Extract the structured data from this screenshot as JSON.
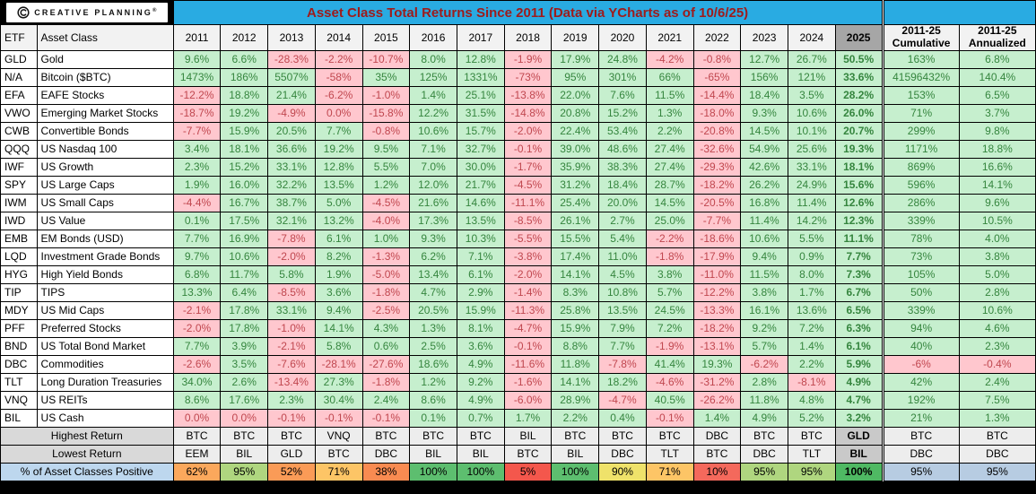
{
  "brand": {
    "logo_text": "CREATIVE PLANNING",
    "logo_reg": "®",
    "icon": "creative-planning-c-icon"
  },
  "title": "Asset Class Total Returns Since 2011 (Data via YCharts as of 10/6/25)",
  "colors": {
    "title_bar_bg": "#29ABE2",
    "title_text": "#9E1B1B",
    "positive_bg": "#C6EFCE",
    "positive_text": "#35853E",
    "negative_bg": "#FFC7CE",
    "negative_text": "#C0474F",
    "header_bg": "#F2F2F2",
    "header_2025_bg": "#A6A6A6",
    "summary_label_bg": "#D9D9D9",
    "summary_value_bg": "#EDEDED",
    "summary_2025_bg": "#C9C9C9",
    "pct_label_bg": "#BDD7EE",
    "pct_side_bg": "#B7CCE2"
  },
  "chart_data": {
    "type": "table",
    "title": "Asset Class Total Returns Since 2011 (Data via YCharts as of 10/6/25)",
    "columns": [
      "ETF",
      "Asset Class",
      "2011",
      "2012",
      "2013",
      "2014",
      "2015",
      "2016",
      "2017",
      "2018",
      "2019",
      "2020",
      "2021",
      "2022",
      "2023",
      "2024",
      "2025",
      "2011-25 Cumulative",
      "2011-25 Annualized"
    ],
    "header": {
      "etf": "ETF",
      "asset_class": "Asset Class",
      "years": [
        "2011",
        "2012",
        "2013",
        "2014",
        "2015",
        "2016",
        "2017",
        "2018",
        "2019",
        "2020",
        "2021",
        "2022",
        "2023",
        "2024",
        "2025"
      ],
      "cumulative_line1": "2011-25",
      "cumulative_line2": "Cumulative",
      "annualized_line1": "2011-25",
      "annualized_line2": "Annualized"
    },
    "rows": [
      {
        "etf": "GLD",
        "asset_class": "Gold",
        "values": [
          "9.6%",
          "6.6%",
          "-28.3%",
          "-2.2%",
          "-10.7%",
          "8.0%",
          "12.8%",
          "-1.9%",
          "17.9%",
          "24.8%",
          "-4.2%",
          "-0.8%",
          "12.7%",
          "26.7%",
          "50.5%"
        ],
        "cumulative": "163%",
        "annualized": "6.8%"
      },
      {
        "etf": "N/A",
        "asset_class": "Bitcoin ($BTC)",
        "values": [
          "1473%",
          "186%",
          "5507%",
          "-58%",
          "35%",
          "125%",
          "1331%",
          "-73%",
          "95%",
          "301%",
          "66%",
          "-65%",
          "156%",
          "121%",
          "33.6%"
        ],
        "cumulative": "41596432%",
        "annualized": "140.4%"
      },
      {
        "etf": "EFA",
        "asset_class": "EAFE Stocks",
        "values": [
          "-12.2%",
          "18.8%",
          "21.4%",
          "-6.2%",
          "-1.0%",
          "1.4%",
          "25.1%",
          "-13.8%",
          "22.0%",
          "7.6%",
          "11.5%",
          "-14.4%",
          "18.4%",
          "3.5%",
          "28.2%"
        ],
        "cumulative": "153%",
        "annualized": "6.5%"
      },
      {
        "etf": "VWO",
        "asset_class": "Emerging Market Stocks",
        "values": [
          "-18.7%",
          "19.2%",
          "-4.9%",
          "0.0%",
          "-15.8%",
          "12.2%",
          "31.5%",
          "-14.8%",
          "20.8%",
          "15.2%",
          "1.3%",
          "-18.0%",
          "9.3%",
          "10.6%",
          "26.0%"
        ],
        "cumulative": "71%",
        "annualized": "3.7%"
      },
      {
        "etf": "CWB",
        "asset_class": "Convertible Bonds",
        "values": [
          "-7.7%",
          "15.9%",
          "20.5%",
          "7.7%",
          "-0.8%",
          "10.6%",
          "15.7%",
          "-2.0%",
          "22.4%",
          "53.4%",
          "2.2%",
          "-20.8%",
          "14.5%",
          "10.1%",
          "20.7%"
        ],
        "cumulative": "299%",
        "annualized": "9.8%"
      },
      {
        "etf": "QQQ",
        "asset_class": "US Nasdaq 100",
        "values": [
          "3.4%",
          "18.1%",
          "36.6%",
          "19.2%",
          "9.5%",
          "7.1%",
          "32.7%",
          "-0.1%",
          "39.0%",
          "48.6%",
          "27.4%",
          "-32.6%",
          "54.9%",
          "25.6%",
          "19.3%"
        ],
        "cumulative": "1171%",
        "annualized": "18.8%"
      },
      {
        "etf": "IWF",
        "asset_class": "US Growth",
        "values": [
          "2.3%",
          "15.2%",
          "33.1%",
          "12.8%",
          "5.5%",
          "7.0%",
          "30.0%",
          "-1.7%",
          "35.9%",
          "38.3%",
          "27.4%",
          "-29.3%",
          "42.6%",
          "33.1%",
          "18.1%"
        ],
        "cumulative": "869%",
        "annualized": "16.6%"
      },
      {
        "etf": "SPY",
        "asset_class": "US Large Caps",
        "values": [
          "1.9%",
          "16.0%",
          "32.2%",
          "13.5%",
          "1.2%",
          "12.0%",
          "21.7%",
          "-4.5%",
          "31.2%",
          "18.4%",
          "28.7%",
          "-18.2%",
          "26.2%",
          "24.9%",
          "15.6%"
        ],
        "cumulative": "596%",
        "annualized": "14.1%"
      },
      {
        "etf": "IWM",
        "asset_class": "US Small Caps",
        "values": [
          "-4.4%",
          "16.7%",
          "38.7%",
          "5.0%",
          "-4.5%",
          "21.6%",
          "14.6%",
          "-11.1%",
          "25.4%",
          "20.0%",
          "14.5%",
          "-20.5%",
          "16.8%",
          "11.4%",
          "12.6%"
        ],
        "cumulative": "286%",
        "annualized": "9.6%"
      },
      {
        "etf": "IWD",
        "asset_class": "US Value",
        "values": [
          "0.1%",
          "17.5%",
          "32.1%",
          "13.2%",
          "-4.0%",
          "17.3%",
          "13.5%",
          "-8.5%",
          "26.1%",
          "2.7%",
          "25.0%",
          "-7.7%",
          "11.4%",
          "14.2%",
          "12.3%"
        ],
        "cumulative": "339%",
        "annualized": "10.5%"
      },
      {
        "etf": "EMB",
        "asset_class": "EM Bonds (USD)",
        "values": [
          "7.7%",
          "16.9%",
          "-7.8%",
          "6.1%",
          "1.0%",
          "9.3%",
          "10.3%",
          "-5.5%",
          "15.5%",
          "5.4%",
          "-2.2%",
          "-18.6%",
          "10.6%",
          "5.5%",
          "11.1%"
        ],
        "cumulative": "78%",
        "annualized": "4.0%"
      },
      {
        "etf": "LQD",
        "asset_class": "Investment Grade Bonds",
        "values": [
          "9.7%",
          "10.6%",
          "-2.0%",
          "8.2%",
          "-1.3%",
          "6.2%",
          "7.1%",
          "-3.8%",
          "17.4%",
          "11.0%",
          "-1.8%",
          "-17.9%",
          "9.4%",
          "0.9%",
          "7.7%"
        ],
        "cumulative": "73%",
        "annualized": "3.8%"
      },
      {
        "etf": "HYG",
        "asset_class": "High Yield Bonds",
        "values": [
          "6.8%",
          "11.7%",
          "5.8%",
          "1.9%",
          "-5.0%",
          "13.4%",
          "6.1%",
          "-2.0%",
          "14.1%",
          "4.5%",
          "3.8%",
          "-11.0%",
          "11.5%",
          "8.0%",
          "7.3%"
        ],
        "cumulative": "105%",
        "annualized": "5.0%"
      },
      {
        "etf": "TIP",
        "asset_class": "TIPS",
        "values": [
          "13.3%",
          "6.4%",
          "-8.5%",
          "3.6%",
          "-1.8%",
          "4.7%",
          "2.9%",
          "-1.4%",
          "8.3%",
          "10.8%",
          "5.7%",
          "-12.2%",
          "3.8%",
          "1.7%",
          "6.7%"
        ],
        "cumulative": "50%",
        "annualized": "2.8%"
      },
      {
        "etf": "MDY",
        "asset_class": "US Mid Caps",
        "values": [
          "-2.1%",
          "17.8%",
          "33.1%",
          "9.4%",
          "-2.5%",
          "20.5%",
          "15.9%",
          "-11.3%",
          "25.8%",
          "13.5%",
          "24.5%",
          "-13.3%",
          "16.1%",
          "13.6%",
          "6.5%"
        ],
        "cumulative": "339%",
        "annualized": "10.6%"
      },
      {
        "etf": "PFF",
        "asset_class": "Preferred Stocks",
        "values": [
          "-2.0%",
          "17.8%",
          "-1.0%",
          "14.1%",
          "4.3%",
          "1.3%",
          "8.1%",
          "-4.7%",
          "15.9%",
          "7.9%",
          "7.2%",
          "-18.2%",
          "9.2%",
          "7.2%",
          "6.3%"
        ],
        "cumulative": "94%",
        "annualized": "4.6%"
      },
      {
        "etf": "BND",
        "asset_class": "US Total Bond Market",
        "values": [
          "7.7%",
          "3.9%",
          "-2.1%",
          "5.8%",
          "0.6%",
          "2.5%",
          "3.6%",
          "-0.1%",
          "8.8%",
          "7.7%",
          "-1.9%",
          "-13.1%",
          "5.7%",
          "1.4%",
          "6.1%"
        ],
        "cumulative": "40%",
        "annualized": "2.3%"
      },
      {
        "etf": "DBC",
        "asset_class": "Commodities",
        "values": [
          "-2.6%",
          "3.5%",
          "-7.6%",
          "-28.1%",
          "-27.6%",
          "18.6%",
          "4.9%",
          "-11.6%",
          "11.8%",
          "-7.8%",
          "41.4%",
          "19.3%",
          "-6.2%",
          "2.2%",
          "5.9%"
        ],
        "cumulative": "-6%",
        "annualized": "-0.4%"
      },
      {
        "etf": "TLT",
        "asset_class": "Long Duration Treasuries",
        "values": [
          "34.0%",
          "2.6%",
          "-13.4%",
          "27.3%",
          "-1.8%",
          "1.2%",
          "9.2%",
          "-1.6%",
          "14.1%",
          "18.2%",
          "-4.6%",
          "-31.2%",
          "2.8%",
          "-8.1%",
          "4.9%"
        ],
        "cumulative": "42%",
        "annualized": "2.4%"
      },
      {
        "etf": "VNQ",
        "asset_class": "US REITs",
        "values": [
          "8.6%",
          "17.6%",
          "2.3%",
          "30.4%",
          "2.4%",
          "8.6%",
          "4.9%",
          "-6.0%",
          "28.9%",
          "-4.7%",
          "40.5%",
          "-26.2%",
          "11.8%",
          "4.8%",
          "4.7%"
        ],
        "cumulative": "192%",
        "annualized": "7.5%"
      },
      {
        "etf": "BIL",
        "asset_class": "US Cash",
        "values": [
          "0.0%",
          "0.0%",
          "-0.1%",
          "-0.1%",
          "-0.1%",
          "0.1%",
          "0.7%",
          "1.7%",
          "2.2%",
          "0.4%",
          "-0.1%",
          "1.4%",
          "4.9%",
          "5.2%",
          "3.2%"
        ],
        "cumulative": "21%",
        "annualized": "1.3%"
      }
    ],
    "summary": {
      "highest_return": {
        "label": "Highest Return",
        "values": [
          "BTC",
          "BTC",
          "BTC",
          "VNQ",
          "BTC",
          "BTC",
          "BTC",
          "BIL",
          "BTC",
          "BTC",
          "BTC",
          "DBC",
          "BTC",
          "BTC",
          "GLD"
        ],
        "cumulative": "BTC",
        "annualized": "BTC"
      },
      "lowest_return": {
        "label": "Lowest Return",
        "values": [
          "EEM",
          "BIL",
          "GLD",
          "BTC",
          "DBC",
          "BIL",
          "BIL",
          "BTC",
          "BIL",
          "DBC",
          "TLT",
          "BTC",
          "DBC",
          "TLT",
          "BIL"
        ],
        "cumulative": "DBC",
        "annualized": "DBC"
      },
      "pct_positive": {
        "label": "% of Asset Classes Positive",
        "values": [
          "62%",
          "95%",
          "52%",
          "71%",
          "38%",
          "100%",
          "100%",
          "5%",
          "100%",
          "90%",
          "71%",
          "10%",
          "95%",
          "95%",
          "100%"
        ],
        "colors": [
          "#FBA85C",
          "#AFD67F",
          "#FA9B57",
          "#FDC566",
          "#F98B51",
          "#5DBE6F",
          "#5DBE6F",
          "#F4574C",
          "#5DBE6F",
          "#EFE26A",
          "#FDC566",
          "#F4695C",
          "#AFD67F",
          "#AFD67F",
          "#4FB963"
        ],
        "cumulative": "95%",
        "annualized": "95%"
      }
    }
  }
}
